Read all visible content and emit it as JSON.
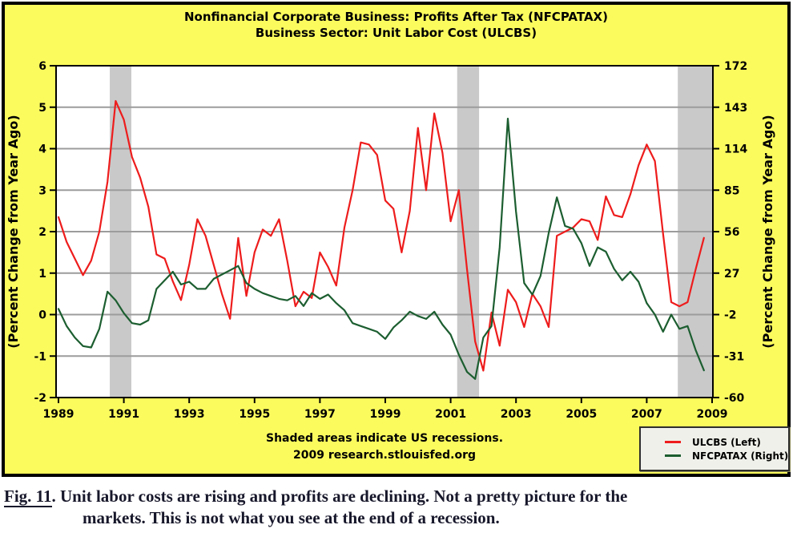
{
  "chart": {
    "title": {
      "line1": "Nonfinancial Corporate Business: Profits After Tax (NFCPATAX)",
      "line2": "Business Sector: Unit Labor Cost (ULCBS)"
    },
    "axes": {
      "left": {
        "title": "(Percent Change from Year Ago)",
        "ticks": [
          6,
          5,
          4,
          3,
          2,
          1,
          0,
          -1,
          -2
        ],
        "range": [
          -2,
          6
        ]
      },
      "right": {
        "title": "(Percent Change from Year Ago)",
        "ticks": [
          172,
          143,
          114,
          85,
          56,
          27,
          -2,
          -31,
          -60
        ],
        "range": [
          -60,
          172
        ]
      },
      "x": {
        "ticks": [
          1989,
          1991,
          1993,
          1995,
          1997,
          1999,
          2001,
          2003,
          2005,
          2007,
          2009
        ],
        "range": [
          1989,
          2009
        ]
      }
    },
    "footer": {
      "line1": "Shaded areas indicate US recessions.",
      "line2": "2009 research.stlouisfed.org"
    },
    "colors": {
      "background": "#fbfb5e",
      "plot_background": "#ffffff",
      "gridline": "#9c9c9c",
      "recession_band": "#c9c9c9",
      "ulcbs_red": "#ee1c1c",
      "nfcpatax_green": "#1c5e30"
    }
  },
  "chart_data": {
    "type": "line",
    "title": "Nonfinancial Corporate Business: Profits After Tax (NFCPATAX) / Business Sector: Unit Labor Cost (ULCBS)",
    "x_start": 1989.0,
    "x_step": 0.25,
    "x_unit": "year (quarterly)",
    "xlim": [
      1989,
      2009
    ],
    "ylim_left": [
      -2,
      6
    ],
    "ylim_right": [
      -60,
      172
    ],
    "grid": true,
    "legend_position": "bottom-right",
    "recessions": [
      [
        1990.57,
        1991.23
      ],
      [
        2001.2,
        2001.87
      ],
      [
        2007.95,
        2009.05
      ]
    ],
    "series": [
      {
        "name": "ULCBS (Left)",
        "axis": "left",
        "color": "#ee1c1c",
        "values": [
          2.35,
          1.75,
          1.35,
          0.95,
          1.3,
          2.0,
          3.2,
          5.15,
          4.7,
          3.8,
          3.3,
          2.6,
          1.45,
          1.35,
          0.8,
          0.35,
          1.2,
          2.3,
          1.9,
          1.2,
          0.5,
          -0.1,
          1.85,
          0.45,
          1.5,
          2.05,
          1.9,
          2.3,
          1.3,
          0.2,
          0.55,
          0.4,
          1.5,
          1.15,
          0.7,
          2.1,
          3.0,
          4.15,
          4.1,
          3.85,
          2.75,
          2.55,
          1.5,
          2.5,
          4.5,
          3.0,
          4.85,
          3.9,
          2.25,
          3.0,
          1.1,
          -0.65,
          -1.35,
          0.05,
          -0.75,
          0.6,
          0.3,
          -0.3,
          0.5,
          0.2,
          -0.3,
          1.9,
          2.0,
          2.1,
          2.3,
          2.25,
          1.8,
          2.85,
          2.4,
          2.35,
          2.9,
          3.6,
          4.1,
          3.7,
          1.95,
          0.3,
          0.2,
          0.3,
          1.1,
          1.85
        ]
      },
      {
        "name": "NFCPATAX (Right)",
        "axis": "right",
        "color": "#1c5e30",
        "values": [
          2,
          -10,
          -18,
          -24,
          -25,
          -12,
          14,
          8,
          -1,
          -8,
          -9,
          -6,
          16,
          22,
          28,
          19,
          21,
          16,
          16,
          23,
          26,
          29,
          32,
          20,
          16,
          13,
          11,
          9,
          8,
          11,
          4,
          13,
          9,
          12,
          6,
          1,
          -8,
          -10,
          -12,
          -14,
          -19,
          -11,
          -6,
          0,
          -3,
          -5,
          0,
          -9,
          -16,
          -30,
          -42,
          -47,
          -18,
          -10,
          45,
          135,
          70,
          20,
          12,
          25,
          55,
          80,
          60,
          58,
          48,
          32,
          45,
          42,
          30,
          22,
          28,
          21,
          6,
          -2,
          -14,
          -2,
          -12,
          -10,
          -27,
          -41
        ]
      }
    ]
  },
  "caption": {
    "fig": "Fig. 11",
    "after_fig": ". Unit labor costs are rising and profits are declining. Not a pretty picture for the",
    "line2": "markets. This is not what you see at the end of a recession."
  }
}
